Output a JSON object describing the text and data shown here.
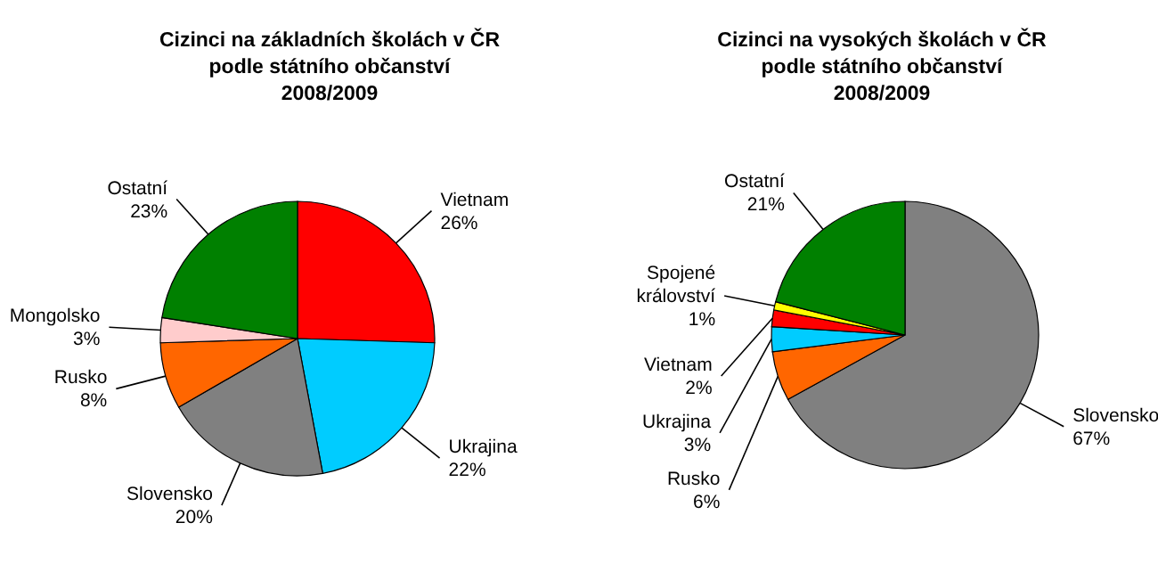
{
  "chart_data": [
    {
      "type": "pie",
      "title": "Cizinci na základních školách v ČR\npodle státního občanství\n2008/2009",
      "categories": [
        "Vietnam",
        "Ukrajina",
        "Slovensko",
        "Rusko",
        "Mongolsko",
        "Ostatní"
      ],
      "values": [
        26,
        22,
        20,
        8,
        3,
        23
      ],
      "value_labels": [
        "26%",
        "22%",
        "20%",
        "8%",
        "3%",
        "23%"
      ],
      "colors": [
        "#ff0000",
        "#00ccff",
        "#808080",
        "#ff6600",
        "#ffcccc",
        "#008000"
      ]
    },
    {
      "type": "pie",
      "title": "Cizinci na vysokých školách v ČR\npodle státního občanství\n2008/2009",
      "categories": [
        "Slovensko",
        "Rusko",
        "Ukrajina",
        "Vietnam",
        "Spojené království",
        "Ostatní"
      ],
      "values": [
        67,
        6,
        3,
        2,
        1,
        21
      ],
      "value_labels": [
        "67%",
        "6%",
        "3%",
        "2%",
        "1%",
        "21%"
      ],
      "colors": [
        "#808080",
        "#ff6600",
        "#00ccff",
        "#ff0000",
        "#ffff00",
        "#008000"
      ]
    }
  ]
}
